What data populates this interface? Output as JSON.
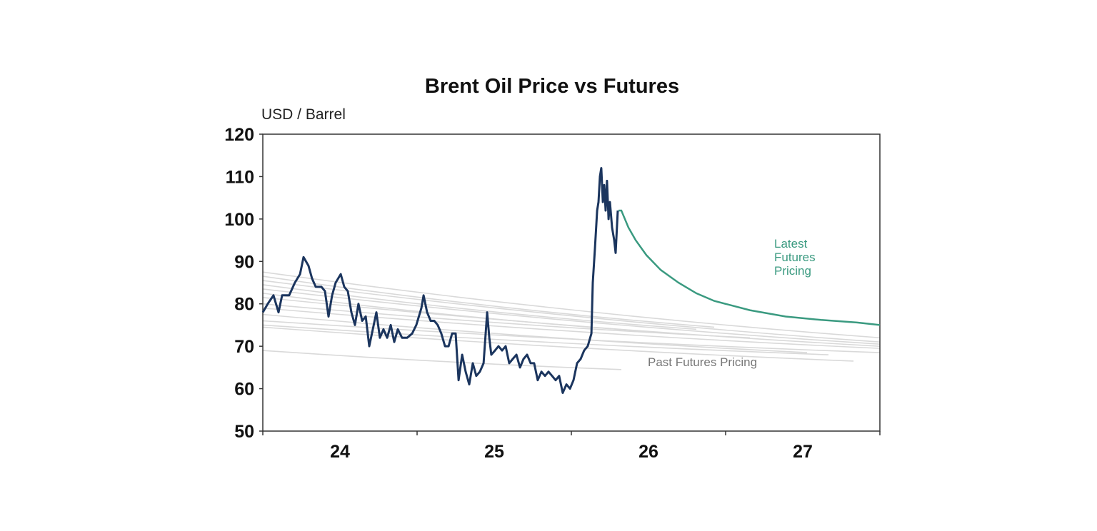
{
  "chart_data": {
    "type": "line",
    "title": "Brent Oil Price vs Futures",
    "ylabel": "USD / Barrel",
    "xlabel": "",
    "ylim": [
      50,
      120
    ],
    "xlim": [
      2024.0,
      2028.0
    ],
    "yticks": [
      50,
      60,
      70,
      80,
      90,
      100,
      110,
      120
    ],
    "xtick_labels": [
      {
        "label": "24",
        "year": 2024
      },
      {
        "label": "25",
        "year": 2025
      },
      {
        "label": "26",
        "year": 2026
      },
      {
        "label": "27",
        "year": 2027
      }
    ],
    "grid": false,
    "colors": {
      "spot": "#1b355e",
      "latest_futures": "#3a9a80",
      "past_futures": "#d9d9d9",
      "axis": "#333333"
    },
    "annotations": {
      "latest": [
        "Latest",
        "Futures",
        "Pricing"
      ],
      "past": "Past Futures Pricing"
    },
    "spot": [
      [
        2024.0,
        78
      ],
      [
        2024.032,
        80
      ],
      [
        2024.069,
        82
      ],
      [
        2024.102,
        78
      ],
      [
        2024.125,
        82
      ],
      [
        2024.171,
        82
      ],
      [
        2024.208,
        85
      ],
      [
        2024.241,
        87
      ],
      [
        2024.264,
        91
      ],
      [
        2024.296,
        89
      ],
      [
        2024.319,
        86
      ],
      [
        2024.343,
        84
      ],
      [
        2024.38,
        84
      ],
      [
        2024.403,
        83
      ],
      [
        2024.426,
        77
      ],
      [
        2024.449,
        82
      ],
      [
        2024.472,
        85
      ],
      [
        2024.505,
        87
      ],
      [
        2024.528,
        84
      ],
      [
        2024.551,
        83
      ],
      [
        2024.574,
        78
      ],
      [
        2024.597,
        75
      ],
      [
        2024.62,
        80
      ],
      [
        2024.644,
        76
      ],
      [
        2024.667,
        77
      ],
      [
        2024.69,
        70
      ],
      [
        2024.713,
        74
      ],
      [
        2024.736,
        78
      ],
      [
        2024.759,
        72
      ],
      [
        2024.782,
        74
      ],
      [
        2024.806,
        72
      ],
      [
        2024.829,
        75
      ],
      [
        2024.852,
        71
      ],
      [
        2024.875,
        74
      ],
      [
        2024.903,
        72
      ],
      [
        2024.935,
        72
      ],
      [
        2024.968,
        73
      ],
      [
        2024.995,
        75
      ],
      [
        2025.028,
        79
      ],
      [
        2025.042,
        82
      ],
      [
        2025.065,
        78
      ],
      [
        2025.088,
        76
      ],
      [
        2025.111,
        76
      ],
      [
        2025.134,
        75
      ],
      [
        2025.157,
        73
      ],
      [
        2025.181,
        70
      ],
      [
        2025.204,
        70
      ],
      [
        2025.227,
        73
      ],
      [
        2025.25,
        73
      ],
      [
        2025.269,
        62
      ],
      [
        2025.292,
        68
      ],
      [
        2025.315,
        64
      ],
      [
        2025.338,
        61
      ],
      [
        2025.361,
        66
      ],
      [
        2025.384,
        63
      ],
      [
        2025.407,
        64
      ],
      [
        2025.431,
        66
      ],
      [
        2025.454,
        78
      ],
      [
        2025.468,
        72
      ],
      [
        2025.481,
        68
      ],
      [
        2025.505,
        69
      ],
      [
        2025.528,
        70
      ],
      [
        2025.551,
        69
      ],
      [
        2025.574,
        70
      ],
      [
        2025.597,
        66
      ],
      [
        2025.62,
        67
      ],
      [
        2025.644,
        68
      ],
      [
        2025.667,
        65
      ],
      [
        2025.69,
        67
      ],
      [
        2025.713,
        68
      ],
      [
        2025.736,
        66
      ],
      [
        2025.759,
        66
      ],
      [
        2025.782,
        62
      ],
      [
        2025.806,
        64
      ],
      [
        2025.829,
        63
      ],
      [
        2025.852,
        64
      ],
      [
        2025.875,
        63
      ],
      [
        2025.898,
        62
      ],
      [
        2025.921,
        63
      ],
      [
        2025.944,
        59
      ],
      [
        2025.968,
        61
      ],
      [
        2025.991,
        60
      ],
      [
        2026.014,
        62
      ],
      [
        2026.037,
        66
      ],
      [
        2026.06,
        67
      ],
      [
        2026.083,
        69
      ],
      [
        2026.106,
        70
      ],
      [
        2026.13,
        73
      ],
      [
        2026.139,
        85
      ],
      [
        2026.153,
        93
      ],
      [
        2026.167,
        102
      ],
      [
        2026.176,
        104
      ],
      [
        2026.185,
        110
      ],
      [
        2026.194,
        112
      ],
      [
        2026.204,
        104
      ],
      [
        2026.213,
        108
      ],
      [
        2026.222,
        102
      ],
      [
        2026.231,
        109
      ],
      [
        2026.241,
        100
      ],
      [
        2026.25,
        104
      ],
      [
        2026.264,
        98
      ],
      [
        2026.278,
        95
      ],
      [
        2026.287,
        92
      ],
      [
        2026.301,
        102
      ]
    ],
    "latest_futures": [
      [
        2026.306,
        102
      ],
      [
        2026.324,
        102
      ],
      [
        2026.37,
        98
      ],
      [
        2026.417,
        95
      ],
      [
        2026.486,
        91.5
      ],
      [
        2026.579,
        88
      ],
      [
        2026.694,
        85
      ],
      [
        2026.81,
        82.5
      ],
      [
        2026.926,
        80.7
      ],
      [
        2027.157,
        78.5
      ],
      [
        2027.389,
        77
      ],
      [
        2027.62,
        76.2
      ],
      [
        2027.852,
        75.6
      ],
      [
        2028.0,
        75
      ]
    ],
    "past_futures": [
      {
        "start": [
          2024.0,
          87.5
        ],
        "end": [
          2028.0,
          72
        ]
      },
      {
        "start": [
          2024.0,
          86.5
        ],
        "end": [
          2026.926,
          74.5
        ]
      },
      {
        "start": [
          2024.0,
          85.5
        ],
        "end": [
          2028.0,
          71
        ]
      },
      {
        "start": [
          2024.0,
          84.5
        ],
        "end": [
          2026.81,
          74
        ]
      },
      {
        "start": [
          2024.0,
          83.5
        ],
        "end": [
          2028.0,
          70.5
        ]
      },
      {
        "start": [
          2024.0,
          82.5
        ],
        "end": [
          2026.486,
          73.5
        ]
      },
      {
        "start": [
          2024.0,
          81.5
        ],
        "end": [
          2028.0,
          70
        ]
      },
      {
        "start": [
          2024.0,
          80
        ],
        "end": [
          2027.157,
          72
        ]
      },
      {
        "start": [
          2024.0,
          79
        ],
        "end": [
          2028.0,
          69.5
        ]
      },
      {
        "start": [
          2024.0,
          77.5
        ],
        "end": [
          2027.528,
          68.5
        ]
      },
      {
        "start": [
          2024.0,
          76
        ],
        "end": [
          2028.0,
          68.5
        ]
      },
      {
        "start": [
          2024.0,
          75
        ],
        "end": [
          2027.667,
          68
        ]
      },
      {
        "start": [
          2024.0,
          74.5
        ],
        "end": [
          2027.829,
          66.5
        ]
      },
      {
        "start": [
          2024.0,
          69
        ],
        "end": [
          2026.324,
          64.5
        ]
      }
    ]
  }
}
